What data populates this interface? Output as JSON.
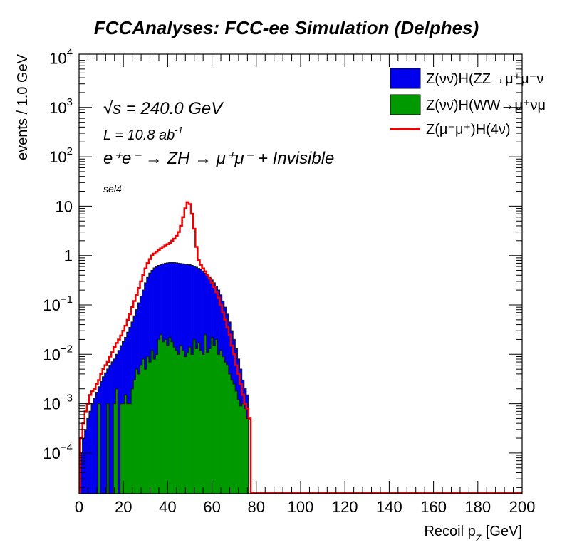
{
  "chart_data": {
    "type": "bar",
    "title": "FCCAnalyses: FCC-ee Simulation (Delphes)",
    "xlabel": "Recoil p",
    "xlabel_sub": "Z",
    "xlabel_unit": " [GeV]",
    "ylabel": "events / 1.0 GeV",
    "xlim": [
      0,
      200
    ],
    "ylim": [
      1.5e-05,
      12000
    ],
    "yscale": "log",
    "bin_width": 1.0,
    "x_ticks": [
      "0",
      "20",
      "40",
      "60",
      "80",
      "100",
      "120",
      "140",
      "160",
      "180",
      "200"
    ],
    "y_ticks": [
      {
        "value": 0.0001,
        "base": "10",
        "exp": "−4"
      },
      {
        "value": 0.001,
        "base": "10",
        "exp": "−3"
      },
      {
        "value": 0.01,
        "base": "10",
        "exp": "−2"
      },
      {
        "value": 0.1,
        "base": "10",
        "exp": "−1"
      },
      {
        "value": 1,
        "base": "1",
        "exp": ""
      },
      {
        "value": 10,
        "base": "10",
        "exp": ""
      },
      {
        "value": 100,
        "base": "10",
        "exp": "2"
      },
      {
        "value": 1000,
        "base": "10",
        "exp": "3"
      },
      {
        "value": 10000,
        "base": "10",
        "exp": "4"
      }
    ],
    "annotations": {
      "sqrt_s": "√s = 240.0 GeV",
      "lumi": "L = 10.8 ab",
      "lumi_exp": "-1",
      "process": "e⁺e⁻ → ZH → μ⁺μ⁻ + Invisible",
      "selection": "sel4"
    },
    "legend": {
      "placement": "top-right",
      "entries": [
        "Z(νν̄)H(ZZ→μ⁺μ⁻ν",
        "Z(νν̄)H(WW→μ⁺νμ",
        "Z(μ⁻μ⁺)H(4ν)"
      ]
    },
    "series": [
      {
        "name": "Z(νν̄)H(ZZ→μ⁺μ⁻ν",
        "style": "stacked-fill",
        "color": "#0000ee",
        "x": [
          1,
          2,
          3,
          4,
          5,
          6,
          7,
          8,
          9,
          10,
          11,
          12,
          13,
          14,
          15,
          16,
          17,
          18,
          19,
          20,
          21,
          22,
          23,
          24,
          25,
          26,
          27,
          28,
          29,
          30,
          31,
          32,
          33,
          34,
          35,
          36,
          37,
          38,
          39,
          40,
          41,
          42,
          43,
          44,
          45,
          46,
          47,
          48,
          49,
          50,
          51,
          52,
          53,
          54,
          55,
          56,
          57,
          58,
          59,
          60,
          61,
          62,
          63,
          64,
          65,
          66,
          67,
          68,
          69,
          70,
          71,
          72,
          73,
          74,
          75,
          76
        ],
        "values": [
          0.0001,
          0.0002,
          0.0003,
          0.0005,
          0.0007,
          0.001,
          0.0013,
          0.0017,
          0.0022,
          0.0028,
          0.0035,
          0.0042,
          0.005,
          0.006,
          0.007,
          0.008,
          0.01,
          0.012,
          0.015,
          0.018,
          0.022,
          0.028,
          0.035,
          0.045,
          0.06,
          0.08,
          0.11,
          0.15,
          0.2,
          0.28,
          0.36,
          0.44,
          0.5,
          0.56,
          0.6,
          0.63,
          0.66,
          0.68,
          0.7,
          0.71,
          0.72,
          0.72,
          0.72,
          0.71,
          0.7,
          0.69,
          0.68,
          0.67,
          0.66,
          0.65,
          0.63,
          0.61,
          0.58,
          0.55,
          0.52,
          0.48,
          0.44,
          0.4,
          0.36,
          0.32,
          0.28,
          0.24,
          0.2,
          0.16,
          0.12,
          0.09,
          0.065,
          0.045,
          0.03,
          0.02,
          0.013,
          0.008,
          0.005,
          0.003,
          0.002,
          0.0015
        ]
      },
      {
        "name": "Z(νν̄)H(WW→μ⁺νμ",
        "style": "stacked-fill",
        "color": "#009900",
        "x": [
          9,
          13,
          16,
          17,
          19,
          20,
          21,
          22,
          23,
          24,
          25,
          26,
          27,
          28,
          29,
          30,
          31,
          32,
          33,
          34,
          35,
          36,
          37,
          38,
          39,
          40,
          41,
          42,
          43,
          44,
          45,
          46,
          47,
          48,
          49,
          50,
          51,
          52,
          53,
          54,
          55,
          56,
          57,
          58,
          59,
          60,
          61,
          62,
          63,
          64,
          65,
          66,
          67,
          68,
          69,
          70,
          71,
          72,
          73,
          74,
          75,
          76
        ],
        "values": [
          0.001,
          0.001,
          0.001,
          0.002,
          0.001,
          0.001,
          0.0015,
          0.001,
          0.001,
          0.002,
          0.003,
          0.005,
          0.004,
          0.006,
          0.008,
          0.005,
          0.009,
          0.007,
          0.012,
          0.008,
          0.01,
          0.02,
          0.025,
          0.018,
          0.02,
          0.015,
          0.022,
          0.018,
          0.014,
          0.012,
          0.01,
          0.015,
          0.012,
          0.009,
          0.011,
          0.014,
          0.01,
          0.02,
          0.013,
          0.017,
          0.012,
          0.01,
          0.025,
          0.011,
          0.013,
          0.022,
          0.015,
          0.02,
          0.01,
          0.012,
          0.009,
          0.007,
          0.006,
          0.004,
          0.003,
          0.0025,
          0.0018,
          0.0012,
          0.0009,
          0.001,
          0.0008,
          0.0005
        ]
      },
      {
        "name": "Z(μ⁻μ⁺)H(4ν)",
        "style": "step-line",
        "color": "#ee0000",
        "x": [
          1,
          2,
          3,
          4,
          5,
          6,
          7,
          8,
          9,
          10,
          11,
          12,
          13,
          14,
          15,
          16,
          17,
          18,
          19,
          20,
          21,
          22,
          23,
          24,
          25,
          26,
          27,
          28,
          29,
          30,
          31,
          32,
          33,
          34,
          35,
          36,
          37,
          38,
          39,
          40,
          41,
          42,
          43,
          44,
          45,
          46,
          47,
          48,
          49,
          50,
          51,
          52,
          53,
          54,
          55,
          56,
          57,
          58,
          59,
          60,
          61,
          62,
          63,
          64,
          65,
          66,
          67,
          68,
          69,
          70,
          71,
          72,
          73,
          74,
          75,
          76,
          77
        ],
        "values": [
          0.0002,
          0.0004,
          0.0007,
          0.001,
          0.0015,
          0.0018,
          0.002,
          0.0025,
          0.003,
          0.004,
          0.005,
          0.006,
          0.007,
          0.009,
          0.011,
          0.014,
          0.017,
          0.02,
          0.024,
          0.03,
          0.038,
          0.05,
          0.065,
          0.09,
          0.12,
          0.16,
          0.22,
          0.3,
          0.4,
          0.55,
          0.7,
          0.85,
          1.0,
          1.1,
          1.2,
          1.3,
          1.4,
          1.5,
          1.6,
          1.7,
          1.8,
          2.0,
          2.2,
          2.5,
          3.0,
          4.0,
          6.0,
          9.0,
          12.0,
          11.0,
          7.0,
          3.5,
          1.5,
          0.8,
          0.65,
          0.55,
          0.48,
          0.4,
          0.34,
          0.28,
          0.23,
          0.18,
          0.14,
          0.1,
          0.07,
          0.05,
          0.035,
          0.025,
          0.015,
          0.01,
          0.006,
          0.004,
          0.0025,
          0.0015,
          0.001,
          0.0008,
          0.0005
        ]
      }
    ]
  }
}
